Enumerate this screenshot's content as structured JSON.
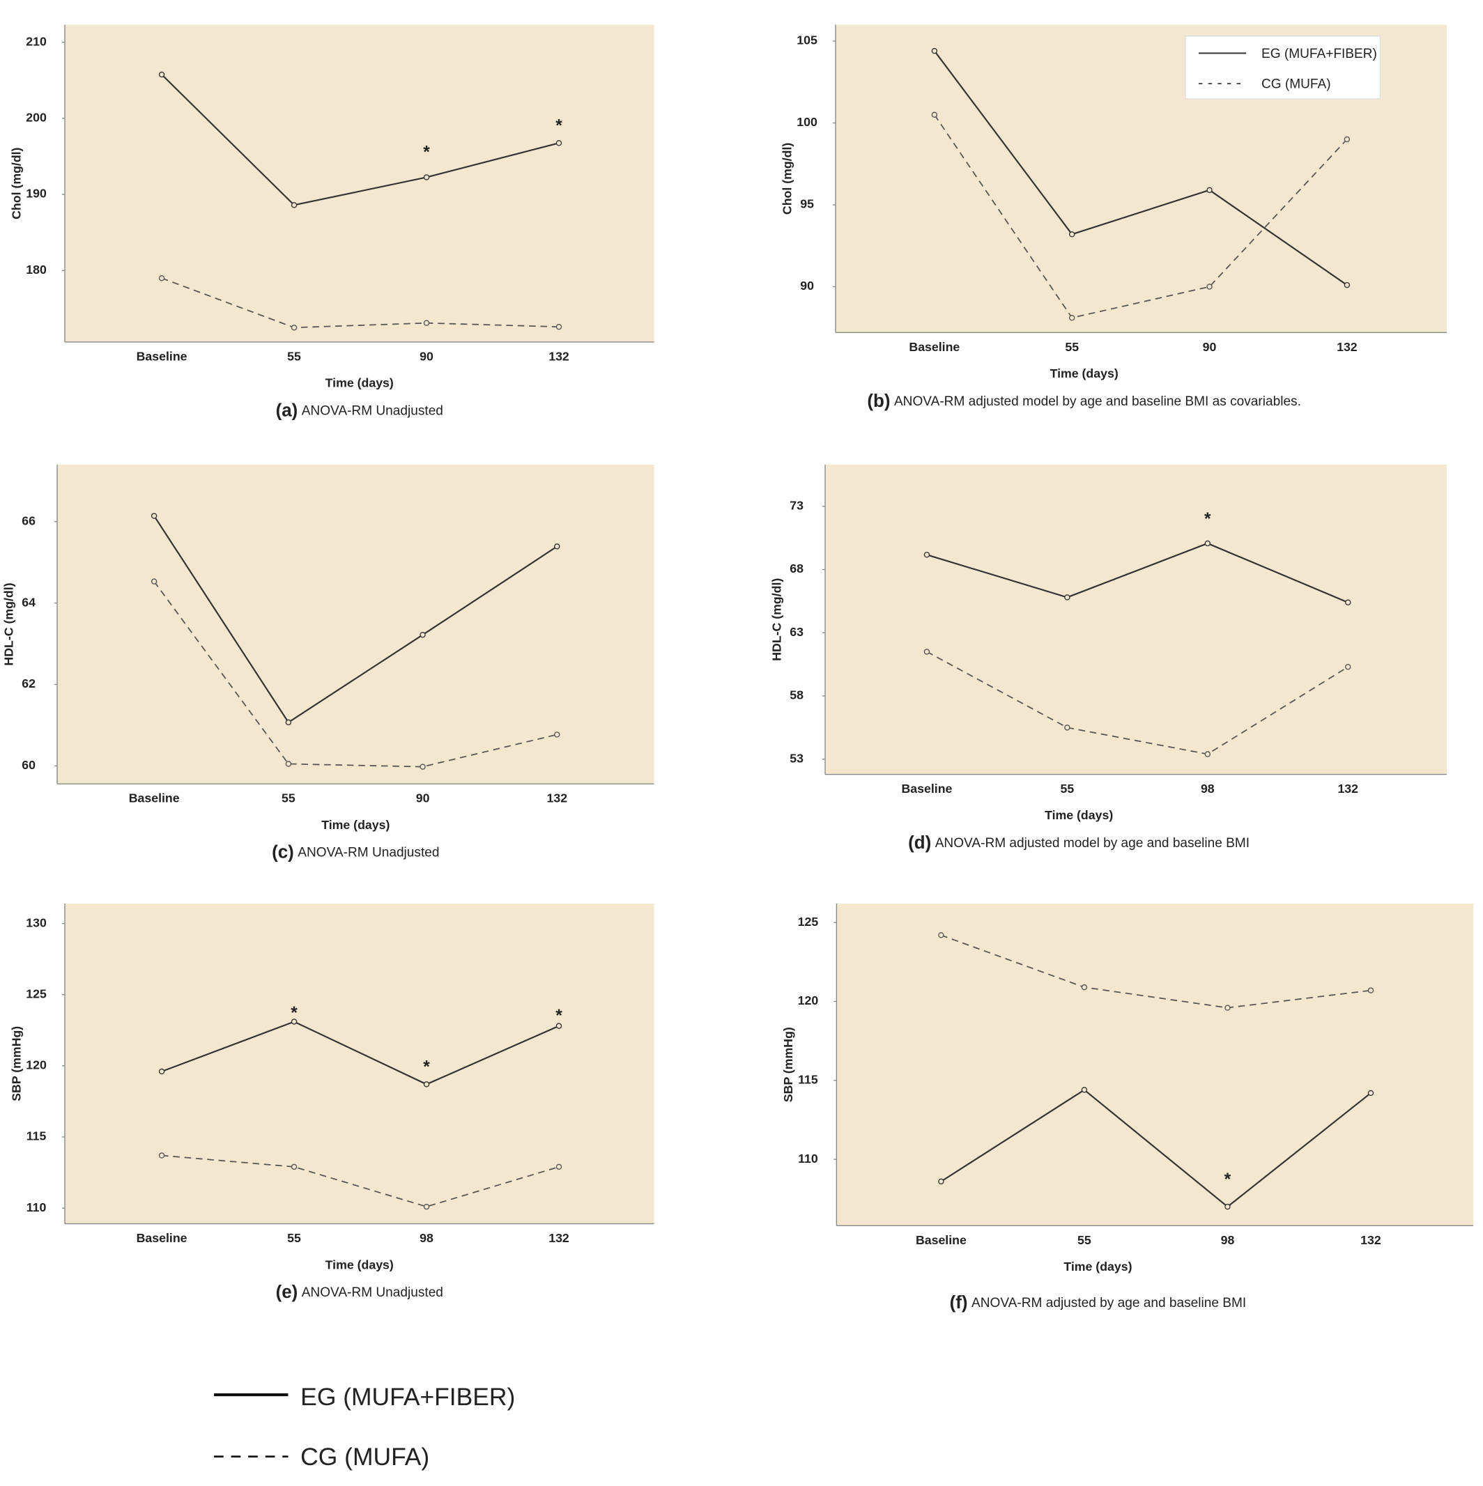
{
  "chart_data": [
    {
      "type": "line",
      "caption_label": "(a)",
      "caption": "ANOVA-RM Unadjusted",
      "xlabel": "Time (days)",
      "ylabel": "Chol (mg/dl)",
      "categories": [
        "Baseline",
        "55",
        "90",
        "132"
      ],
      "ylim": [
        170.6,
        212.3
      ],
      "yticks": [
        180,
        190,
        200,
        210
      ],
      "series": [
        {
          "name": "EG (MUFA+FIBER)",
          "color": "#333333",
          "style": "solid",
          "values": [
            205.75,
            188.6,
            192.25,
            196.75
          ]
        },
        {
          "name": "CG (MUFA)",
          "color": "#555555",
          "style": "dashed",
          "values": [
            179.0,
            172.5,
            173.1,
            172.6
          ]
        }
      ],
      "annotations": [
        {
          "text": "*",
          "x": "90",
          "y": 195.9
        },
        {
          "text": "*",
          "x": "132",
          "y": 199.4
        }
      ]
    },
    {
      "type": "line",
      "caption_label": "(b)",
      "caption": "ANOVA-RM adjusted model by age and baseline BMI as covariables.",
      "xlabel": "Time (days)",
      "ylabel": "Chol (mg/dl)",
      "categories": [
        "Baseline",
        "55",
        "90",
        "132"
      ],
      "ylim": [
        87.2,
        106.0
      ],
      "yticks": [
        90,
        95,
        100,
        105
      ],
      "legend": "upper right",
      "series": [
        {
          "name": "EG (MUFA+FIBER)",
          "color": "#333333",
          "style": "solid",
          "values": [
            104.4,
            93.2,
            95.9,
            90.1
          ]
        },
        {
          "name": "CG (MUFA)",
          "color": "#555555",
          "style": "dashed",
          "values": [
            100.5,
            88.1,
            90.0,
            99.0
          ]
        }
      ]
    },
    {
      "type": "line",
      "caption_label": "(c)",
      "caption": "ANOVA-RM Unadjusted",
      "xlabel": "Time (days)",
      "ylabel": "HDL-C (mg/dl)",
      "categories": [
        "Baseline",
        "55",
        "90",
        "132"
      ],
      "ylim": [
        59.56,
        67.4
      ],
      "yticks": [
        60,
        62,
        64,
        66
      ],
      "series": [
        {
          "name": "EG (MUFA+FIBER)",
          "color": "#333333",
          "style": "solid",
          "values": [
            66.14,
            61.07,
            63.22,
            65.39
          ]
        },
        {
          "name": "CG (MUFA)",
          "color": "#555555",
          "style": "dashed",
          "values": [
            64.53,
            60.05,
            59.98,
            60.77
          ]
        }
      ]
    },
    {
      "type": "line",
      "caption_label": "(d)",
      "caption": "ANOVA-RM adjusted model by age and baseline BMI",
      "xlabel": "Time (days)",
      "ylabel": "HDL-C (mg/dl)",
      "categories": [
        "Baseline",
        "55",
        "98",
        "132"
      ],
      "ylim": [
        51.8,
        76.3
      ],
      "yticks": [
        53,
        58,
        63,
        68,
        73
      ],
      "series": [
        {
          "name": "EG (MUFA+FIBER)",
          "color": "#333333",
          "style": "solid",
          "values": [
            69.17,
            65.8,
            70.07,
            65.4
          ]
        },
        {
          "name": "CG (MUFA)",
          "color": "#555555",
          "style": "dashed",
          "values": [
            61.5,
            55.5,
            53.4,
            60.3
          ]
        }
      ],
      "annotations": [
        {
          "text": "*",
          "x": "98",
          "y": 72.2
        }
      ]
    },
    {
      "type": "line",
      "caption_label": "(e)",
      "caption": "ANOVA-RM Unadjusted",
      "xlabel": "Time (days)",
      "ylabel": "SBP (mmHg)",
      "categories": [
        "Baseline",
        "55",
        "98",
        "132"
      ],
      "ylim": [
        108.9,
        131.4
      ],
      "yticks": [
        110,
        115,
        120,
        125,
        130
      ],
      "series": [
        {
          "name": "EG (MUFA+FIBER)",
          "color": "#333333",
          "style": "solid",
          "values": [
            119.6,
            123.1,
            118.7,
            122.8
          ]
        },
        {
          "name": "CG (MUFA)",
          "color": "#555555",
          "style": "dashed",
          "values": [
            113.7,
            112.9,
            110.1,
            112.9
          ]
        }
      ],
      "annotations": [
        {
          "text": "*",
          "x": "55",
          "y": 123.9
        },
        {
          "text": "*",
          "x": "98",
          "y": 120.1
        },
        {
          "text": "*",
          "x": "132",
          "y": 123.7
        }
      ]
    },
    {
      "type": "line",
      "caption_label": "(f)",
      "caption": "ANOVA-RM adjusted by age and baseline BMI",
      "xlabel": "Time (days)",
      "ylabel": "SBP (mmHg)",
      "categories": [
        "Baseline",
        "55",
        "98",
        "132"
      ],
      "ylim": [
        105.8,
        126.2
      ],
      "yticks": [
        110,
        115,
        120,
        125
      ],
      "series": [
        {
          "name": "EG (MUFA+FIBER)",
          "color": "#333333",
          "style": "solid",
          "values": [
            108.6,
            114.4,
            107.0,
            114.2
          ]
        },
        {
          "name": "CG (MUFA)",
          "color": "#555555",
          "style": "dashed",
          "values": [
            124.2,
            120.9,
            119.6,
            120.7
          ]
        }
      ],
      "annotations": [
        {
          "text": "*",
          "x": "98",
          "y": 108.9
        }
      ]
    }
  ],
  "legend": [
    "EG (MUFA+FIBER)",
    "CG (MUFA)"
  ]
}
